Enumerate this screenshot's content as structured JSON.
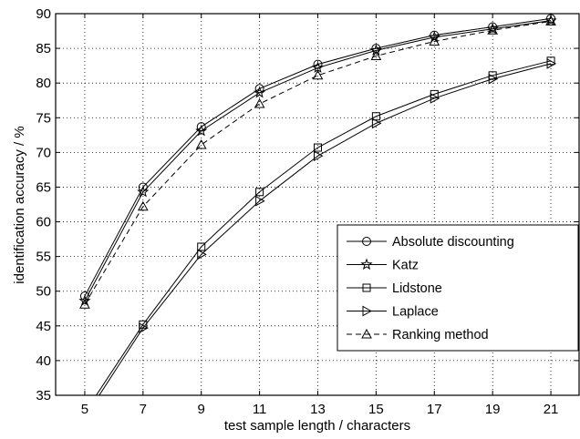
{
  "chart_data": {
    "type": "line",
    "title": "",
    "xlabel": "test sample length / characters",
    "ylabel": "identification accuracy / %",
    "xlim": [
      4,
      22
    ],
    "ylim": [
      35,
      90
    ],
    "xticks": [
      5,
      7,
      9,
      11,
      13,
      15,
      17,
      19,
      21
    ],
    "yticks": [
      35,
      40,
      45,
      50,
      55,
      60,
      65,
      70,
      75,
      80,
      85,
      90
    ],
    "grid": true,
    "legend_position": "lower-right",
    "x": [
      5,
      7,
      9,
      11,
      13,
      15,
      17,
      19,
      21
    ],
    "series": [
      {
        "name": "Absolute discounting",
        "marker": "circle",
        "line": "solid",
        "color": "#000000",
        "values": [
          49.3,
          65.0,
          73.7,
          79.2,
          82.7,
          85.0,
          86.9,
          88.1,
          89.3
        ]
      },
      {
        "name": "Katz",
        "marker": "star",
        "line": "solid",
        "color": "#000000",
        "values": [
          48.6,
          64.3,
          73.1,
          78.6,
          82.2,
          84.7,
          86.6,
          87.8,
          89.0
        ]
      },
      {
        "name": "Lidstone",
        "marker": "square",
        "line": "solid",
        "color": "#000000",
        "values": [
          32.5,
          45.2,
          56.4,
          64.3,
          70.7,
          75.2,
          78.4,
          81.1,
          83.2
        ]
      },
      {
        "name": "Laplace",
        "marker": "triangle-right",
        "line": "solid",
        "color": "#000000",
        "values": [
          31.8,
          44.7,
          55.3,
          63.0,
          69.5,
          74.2,
          77.8,
          80.6,
          82.8
        ]
      },
      {
        "name": "Ranking method",
        "marker": "triangle-up",
        "line": "dashed",
        "color": "#000000",
        "values": [
          48.1,
          62.2,
          71.1,
          77.0,
          81.1,
          83.9,
          86.0,
          87.6,
          88.9
        ]
      }
    ]
  }
}
